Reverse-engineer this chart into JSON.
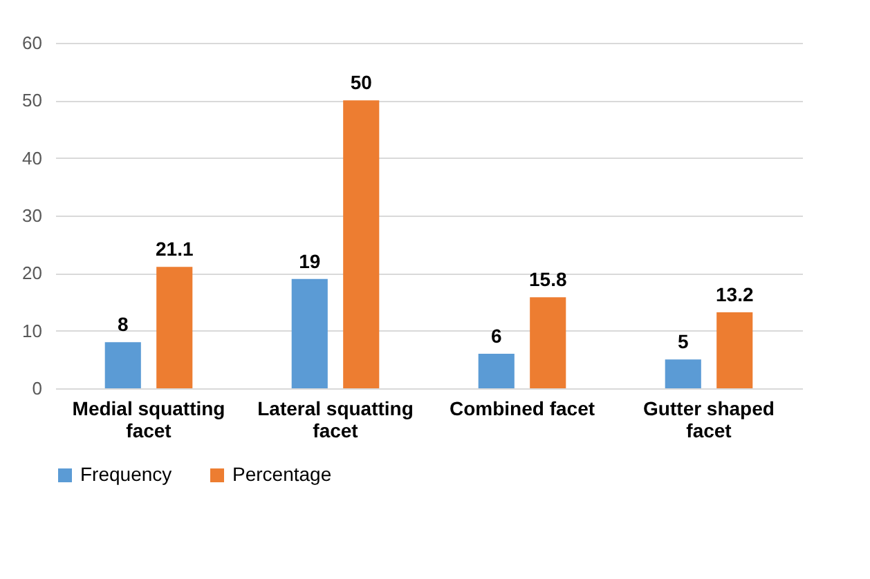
{
  "chart_data": {
    "type": "bar",
    "categories": [
      "Medial squatting facet",
      "Lateral squatting facet",
      "Combined facet",
      "Gutter shaped facet"
    ],
    "series": [
      {
        "name": "Frequency",
        "color": "#5b9bd5",
        "values": [
          8,
          19,
          6,
          5
        ]
      },
      {
        "name": "Percentage",
        "color": "#ed7d31",
        "values": [
          21.1,
          50,
          15.8,
          13.2
        ]
      }
    ],
    "ylim": [
      0,
      60
    ],
    "yticks": [
      0,
      10,
      20,
      30,
      40,
      50,
      60
    ],
    "grid": "y",
    "legend": "bottom",
    "data_labels": true
  }
}
